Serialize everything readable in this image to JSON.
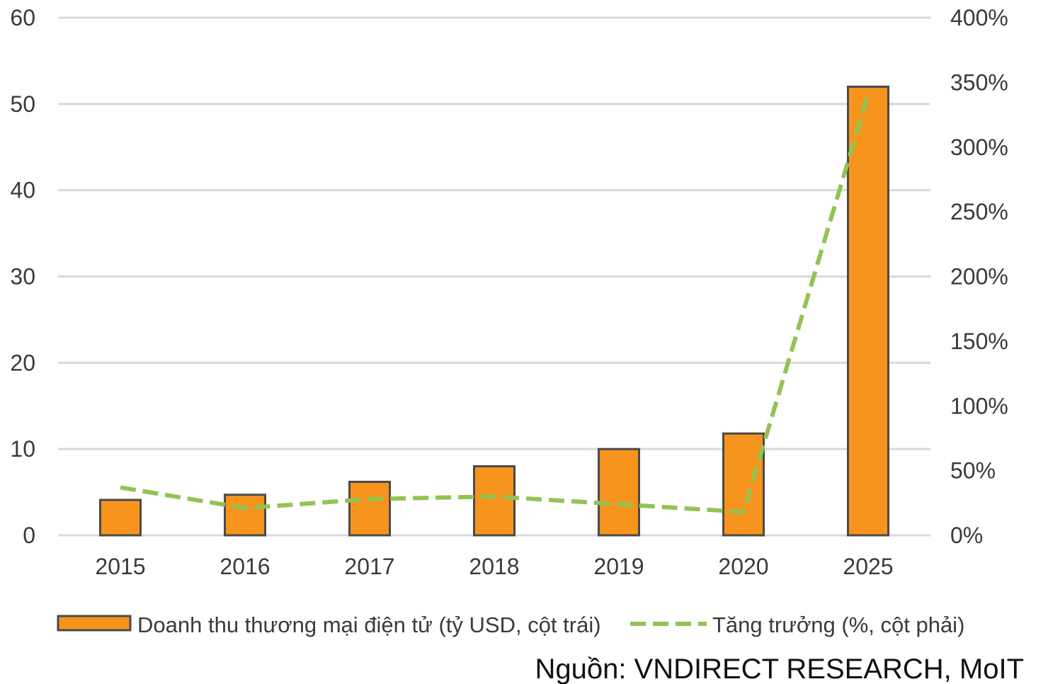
{
  "chart_data": {
    "type": "bar+line",
    "categories": [
      "2015",
      "2016",
      "2017",
      "2018",
      "2019",
      "2020",
      "2025"
    ],
    "series": [
      {
        "name": "Doanh thu thương mại điện tử (tỷ USD, cột trái)",
        "type": "bar",
        "axis": "left",
        "values": [
          4.1,
          4.7,
          6.2,
          8.0,
          10.0,
          11.8,
          52.0
        ]
      },
      {
        "name": "Tăng trưởng (%, cột phải)",
        "type": "line",
        "style": "dashed",
        "axis": "right",
        "values": [
          37,
          21,
          28,
          30,
          24,
          18,
          341
        ]
      }
    ],
    "y_left": {
      "range": [
        0,
        60
      ],
      "ticks": [
        "0",
        "10",
        "20",
        "30",
        "40",
        "50",
        "60"
      ]
    },
    "y_right": {
      "range": [
        0,
        400
      ],
      "ticks": [
        "0%",
        "50%",
        "100%",
        "150%",
        "200%",
        "250%",
        "300%",
        "350%",
        "400%"
      ]
    },
    "grid": true,
    "legend_position": "bottom",
    "colors": {
      "bar": "#F7941D",
      "bar_outline": "#4a4a4a",
      "line": "#92C353",
      "grid": "#d9d9d9"
    }
  },
  "source": "Nguồn: VNDIRECT RESEARCH, MoIT"
}
